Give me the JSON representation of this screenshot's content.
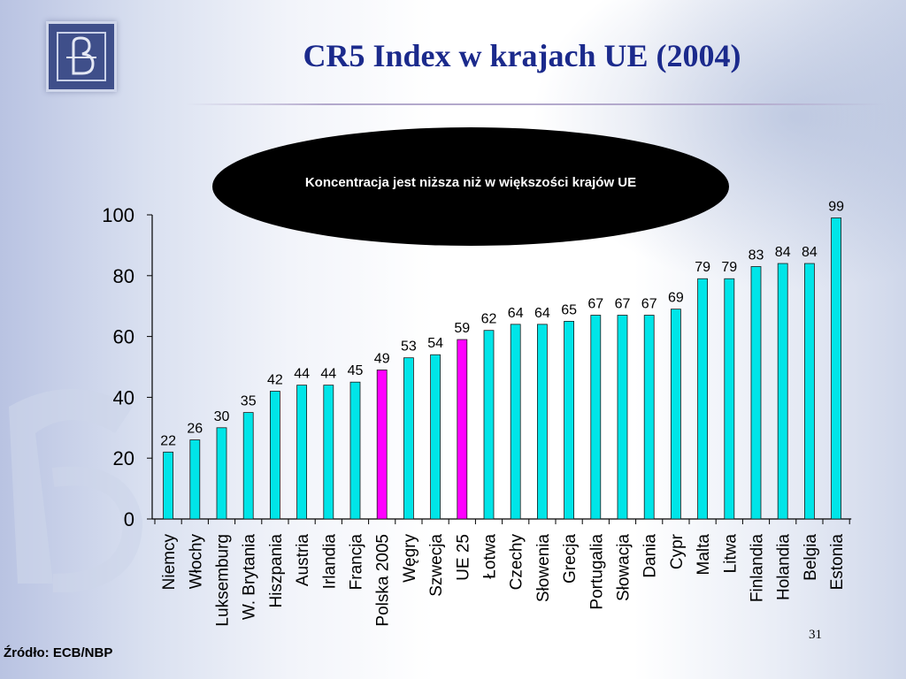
{
  "slide": {
    "title": "CR5 Index w krajach UE (2004)",
    "callout": "Koncentracja jest niższa niż w większości krajów UE",
    "source": "Źródło: ECB/NBP",
    "page_number": "31"
  },
  "colors": {
    "bar_default": "#00e5e8",
    "bar_highlight": "#ff00ff",
    "title": "#1b2a8c",
    "logo": "#3f4f8a"
  },
  "chart_data": {
    "type": "bar",
    "title": "",
    "xlabel": "",
    "ylabel": "",
    "ylim": [
      0,
      100
    ],
    "yticks": [
      0,
      20,
      40,
      60,
      80,
      100
    ],
    "grid": false,
    "categories": [
      "Niemcy",
      "Włochy",
      "Luksemburg",
      "W. Brytania",
      "Hiszpania",
      "Austria",
      "Irlandia",
      "Francja",
      "Polska 2005",
      "Węgry",
      "Szwecja",
      "UE 25",
      "Łotwa",
      "Czechy",
      "Słowenia",
      "Grecja",
      "Portugalia",
      "Słowacja",
      "Dania",
      "Cypr",
      "Malta",
      "Litwa",
      "Finlandia",
      "Holandia",
      "Belgia",
      "Estonia"
    ],
    "values": [
      22,
      26,
      30,
      35,
      42,
      44,
      44,
      45,
      49,
      53,
      54,
      59,
      62,
      64,
      64,
      65,
      67,
      67,
      67,
      69,
      79,
      79,
      83,
      84,
      84,
      99
    ],
    "highlighted": [
      "Polska 2005",
      "UE 25"
    ]
  }
}
